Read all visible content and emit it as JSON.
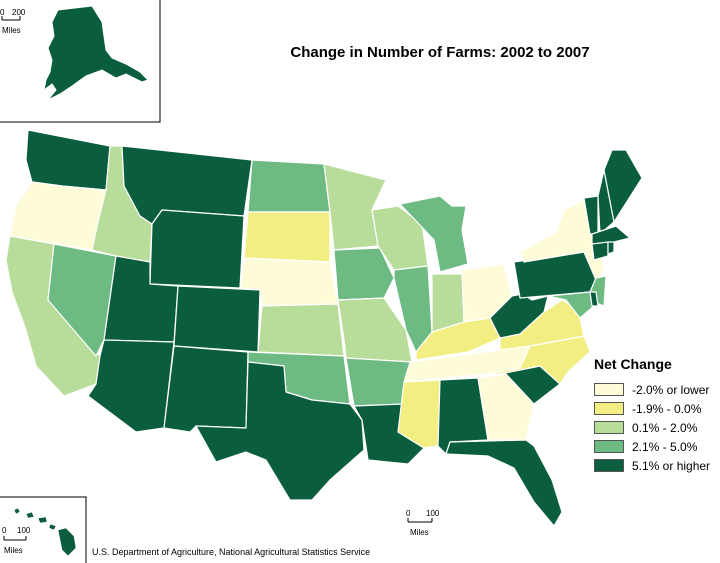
{
  "title": "Change in Number of Farms:  2002 to 2007",
  "source": "U.S. Department of Agriculture, National Agricultural Statistics Service",
  "legend": {
    "title": "Net Change",
    "items": [
      {
        "label": "-2.0% or lower",
        "color": "#fdfbd8"
      },
      {
        "label": "-1.9% - 0.0%",
        "color": "#f3ee82"
      },
      {
        "label": "0.1% - 2.0%",
        "color": "#b8dc9a"
      },
      {
        "label": "2.1% - 5.0%",
        "color": "#6dbb83"
      },
      {
        "label": "5.1% or higher",
        "color": "#0a5e3e"
      }
    ]
  },
  "scales": {
    "alaska": {
      "zero": "0",
      "value": "200",
      "unit": "Miles"
    },
    "mainland": {
      "zero": "0",
      "value": "100",
      "unit": "Miles"
    },
    "hawaii": {
      "zero": "0",
      "value": "100",
      "unit": "Miles"
    }
  }
}
